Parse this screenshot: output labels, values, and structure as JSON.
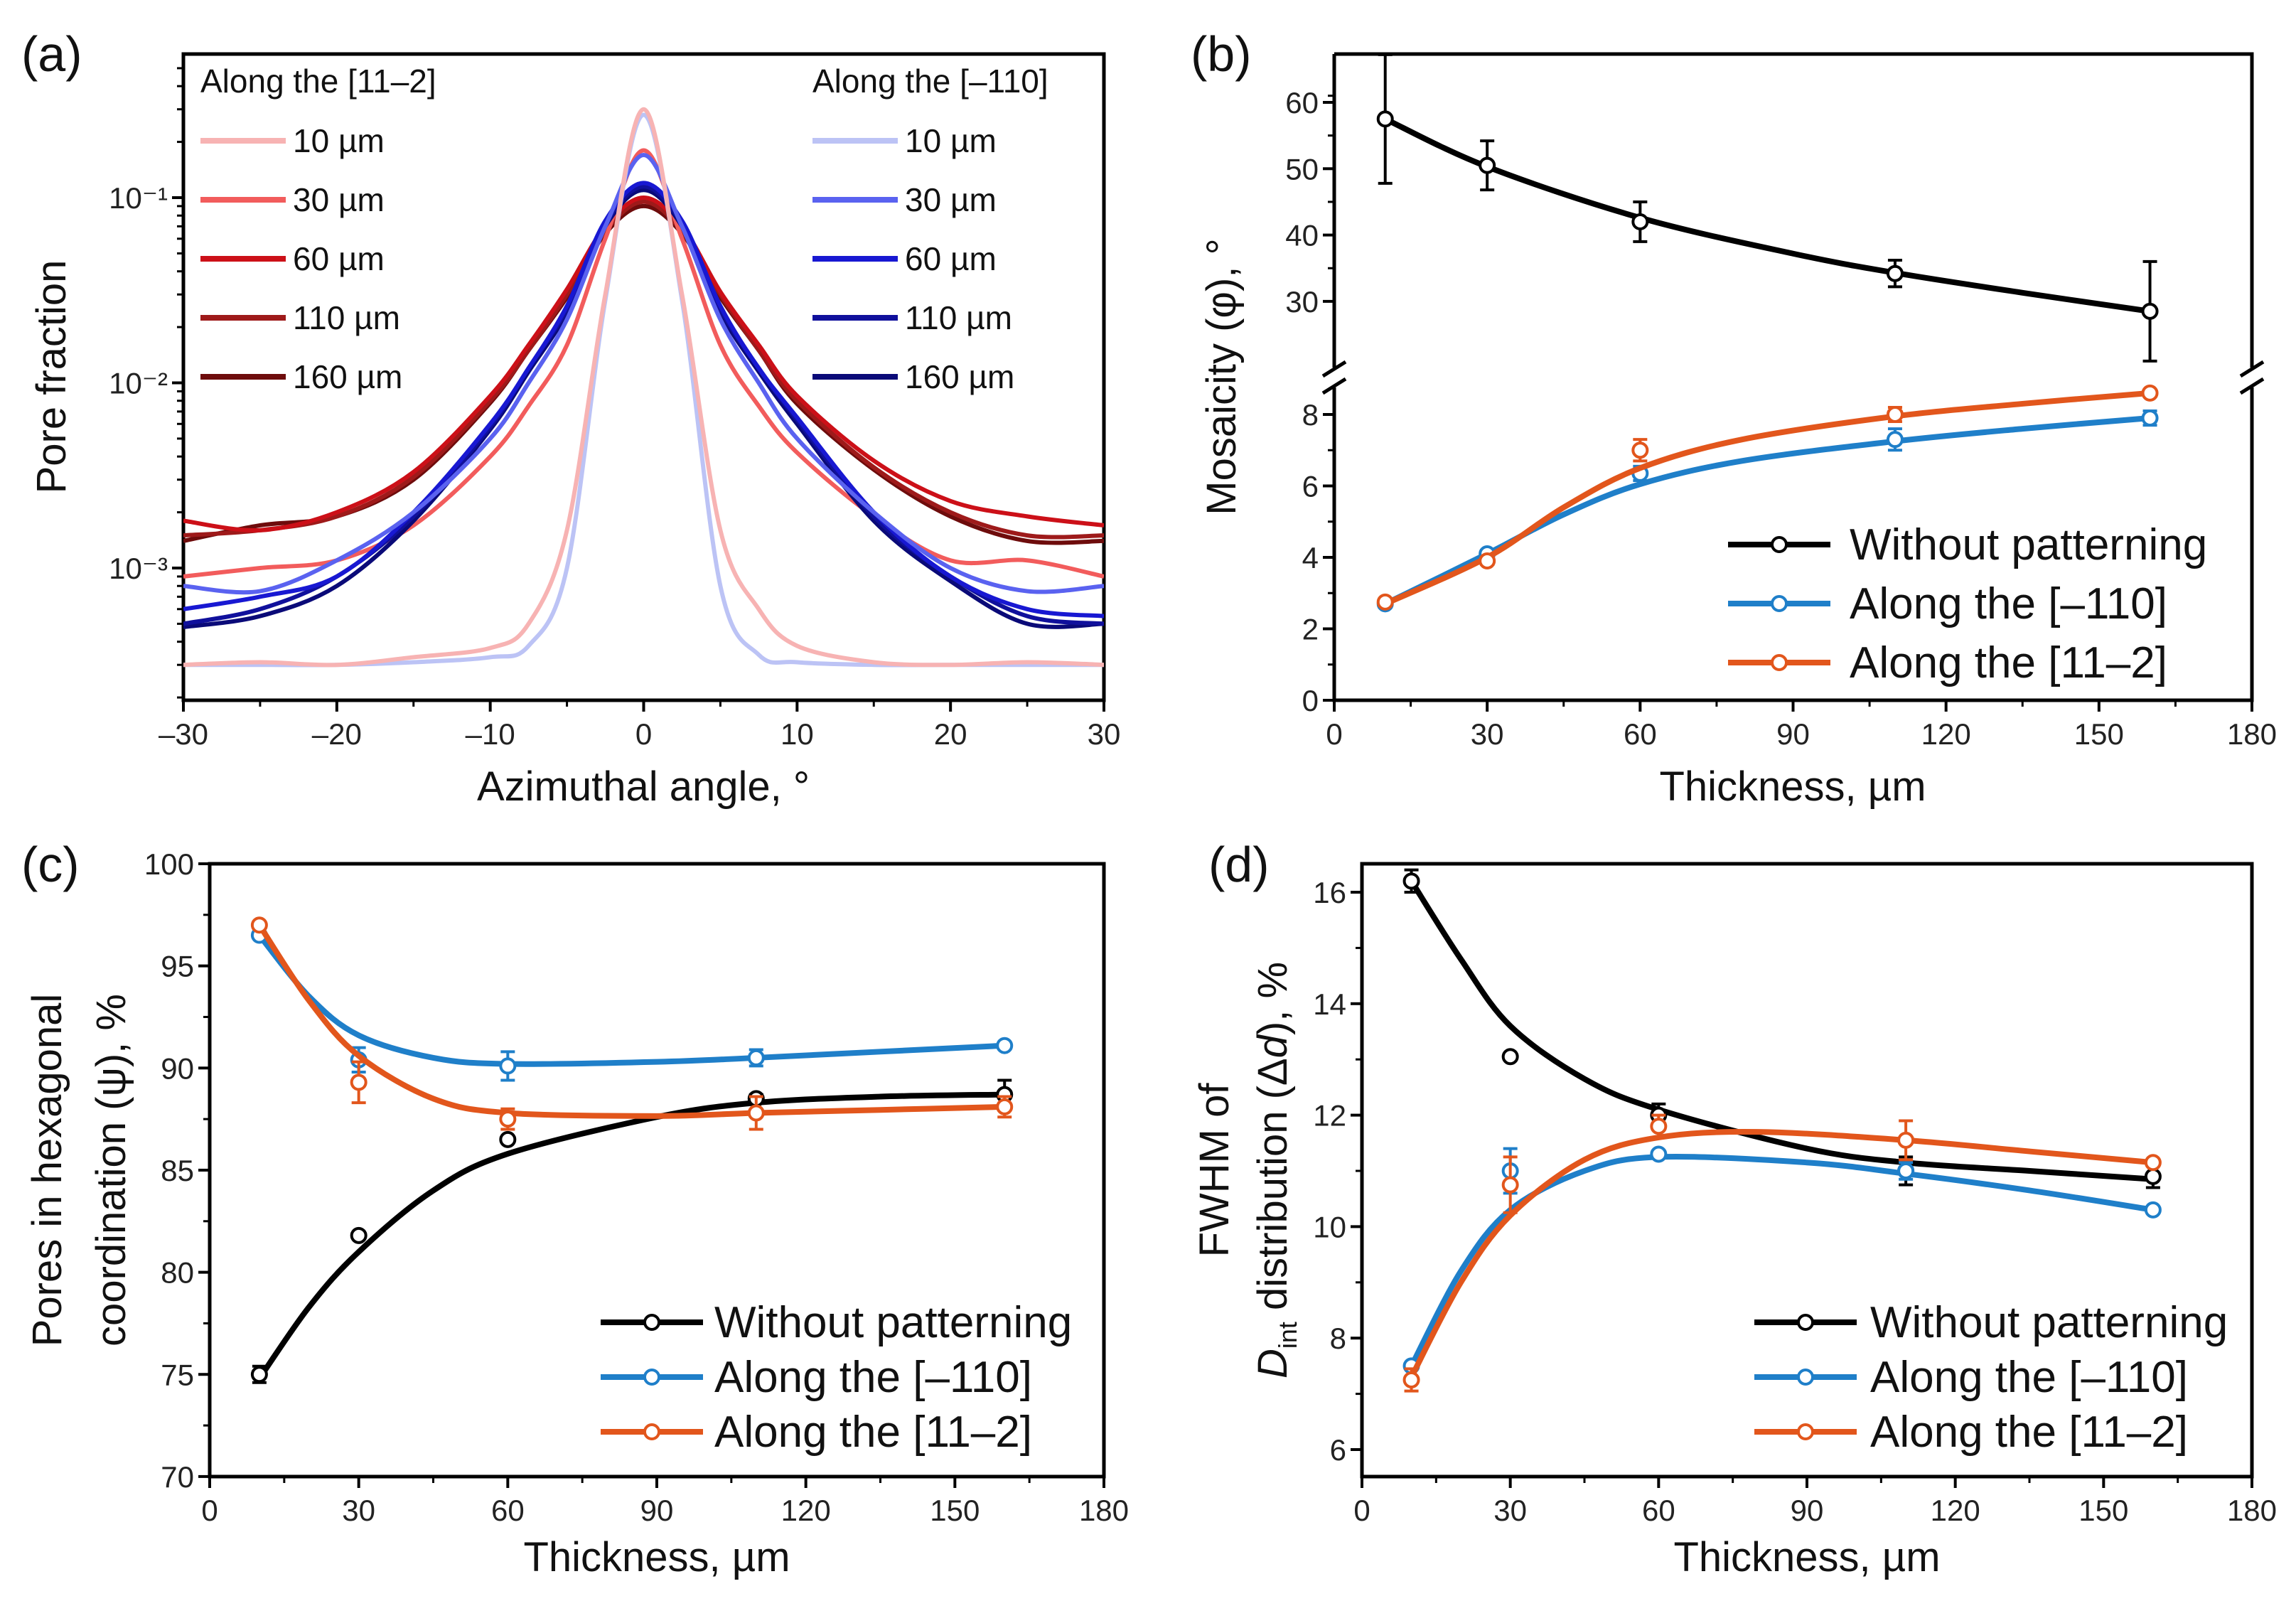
{
  "chart_data": [
    {
      "panel": "(a)",
      "type": "line",
      "xlabel": "Azimuthal angle, °",
      "ylabel": "Pore fraction",
      "xlim": [
        -30,
        30
      ],
      "ylim": [
        0.000195,
        0.6
      ],
      "yscale": "log",
      "xticks": [
        -30,
        -20,
        -10,
        0,
        10,
        20,
        30
      ],
      "xtick_labels": [
        "–30",
        "–20",
        "–10",
        "0",
        "10",
        "20",
        "30"
      ],
      "yticks": [
        0.1,
        0.01,
        0.001
      ],
      "ytick_labels": [
        "10⁻¹",
        "10⁻²",
        "10⁻³"
      ],
      "legend_groups": [
        {
          "title": "Along the [11–2]",
          "placement": "top-left"
        },
        {
          "title": "Along the [–110]",
          "placement": "top-right"
        }
      ],
      "x": [
        -30,
        -25,
        -20,
        -15,
        -10,
        -7.5,
        -5,
        -2.5,
        0,
        2.5,
        5,
        7.5,
        10,
        15,
        20,
        25,
        30
      ],
      "series": [
        {
          "group": 0,
          "name": "10 µm",
          "color": "#f7b3b3",
          "values": [
            0.0003,
            0.00031,
            0.0003,
            0.00033,
            0.00037,
            0.0005,
            0.0016,
            0.03,
            0.3,
            0.03,
            0.0016,
            0.0006,
            0.00038,
            0.00031,
            0.0003,
            0.00031,
            0.0003
          ]
        },
        {
          "group": 0,
          "name": "30 µm",
          "color": "#f25c5c",
          "values": [
            0.0009,
            0.001,
            0.0011,
            0.0017,
            0.004,
            0.0075,
            0.016,
            0.06,
            0.18,
            0.06,
            0.016,
            0.0075,
            0.0042,
            0.0019,
            0.0011,
            0.0011,
            0.0009
          ]
        },
        {
          "group": 0,
          "name": "60 µm",
          "color": "#cc1018",
          "values": [
            0.0018,
            0.0016,
            0.002,
            0.0033,
            0.0085,
            0.016,
            0.032,
            0.07,
            0.1,
            0.07,
            0.031,
            0.016,
            0.0085,
            0.0038,
            0.0023,
            0.0019,
            0.0017
          ]
        },
        {
          "group": 0,
          "name": "110 µm",
          "color": "#9e1a1a",
          "values": [
            0.0015,
            0.0016,
            0.0019,
            0.0031,
            0.008,
            0.015,
            0.03,
            0.066,
            0.095,
            0.066,
            0.03,
            0.015,
            0.008,
            0.0035,
            0.002,
            0.0015,
            0.0015
          ]
        },
        {
          "group": 0,
          "name": "160 µm",
          "color": "#6e0c0c",
          "values": [
            0.0014,
            0.0017,
            0.0019,
            0.003,
            0.0078,
            0.015,
            0.029,
            0.064,
            0.09,
            0.064,
            0.029,
            0.015,
            0.0077,
            0.0034,
            0.0019,
            0.0014,
            0.0014
          ]
        },
        {
          "group": 1,
          "name": "10 µm",
          "color": "#bcc3f5",
          "values": [
            0.0003,
            0.0003,
            0.0003,
            0.00031,
            0.00033,
            0.00038,
            0.001,
            0.028,
            0.28,
            0.028,
            0.0008,
            0.00034,
            0.00031,
            0.0003,
            0.0003,
            0.0003,
            0.0003
          ]
        },
        {
          "group": 1,
          "name": "30 µm",
          "color": "#5a62f0",
          "values": [
            0.0008,
            0.00075,
            0.0011,
            0.002,
            0.005,
            0.01,
            0.022,
            0.07,
            0.17,
            0.07,
            0.022,
            0.01,
            0.005,
            0.002,
            0.001,
            0.00075,
            0.0008
          ]
        },
        {
          "group": 1,
          "name": "60 µm",
          "color": "#1818d2",
          "values": [
            0.0006,
            0.0007,
            0.0009,
            0.002,
            0.006,
            0.012,
            0.026,
            0.075,
            0.12,
            0.075,
            0.026,
            0.012,
            0.0065,
            0.002,
            0.0009,
            0.0006,
            0.00055
          ]
        },
        {
          "group": 1,
          "name": "110 µm",
          "color": "#10109c",
          "values": [
            0.0005,
            0.0006,
            0.0009,
            0.0019,
            0.0058,
            0.012,
            0.025,
            0.072,
            0.115,
            0.072,
            0.025,
            0.012,
            0.0063,
            0.0019,
            0.0009,
            0.00055,
            0.0005
          ]
        },
        {
          "group": 1,
          "name": "160 µm",
          "color": "#0a0a78",
          "values": [
            0.00048,
            0.00055,
            0.0008,
            0.0018,
            0.0056,
            0.0115,
            0.024,
            0.07,
            0.11,
            0.07,
            0.024,
            0.0115,
            0.006,
            0.0018,
            0.00085,
            0.0005,
            0.0005
          ]
        }
      ]
    },
    {
      "panel": "(b)",
      "type": "line",
      "xlabel": "Thickness, µm",
      "ylabel": "Mosaicity (φ), °",
      "xlim": [
        0,
        180
      ],
      "ylim_lower": [
        0,
        9
      ],
      "ylim_upper": [
        20,
        67.3
      ],
      "axis_break": true,
      "xticks": [
        0,
        30,
        60,
        90,
        120,
        150,
        180
      ],
      "yticks": [
        0,
        2,
        4,
        6,
        8,
        30,
        40,
        50,
        60
      ],
      "legend_placement": "bottom-right",
      "x": [
        10,
        30,
        60,
        110,
        160
      ],
      "series": [
        {
          "name": "Without patterning",
          "color": "#000000",
          "values": [
            57.5,
            50.5,
            42,
            34.2,
            28.5
          ],
          "errors": [
            9.7,
            3.7,
            3,
            2,
            7.5
          ],
          "fit_x": [
            10,
            30,
            60,
            90,
            110,
            135,
            160
          ],
          "fit": [
            57.5,
            50.3,
            42.6,
            37.2,
            34.3,
            31.3,
            28.5
          ]
        },
        {
          "name": "Along the [–110]",
          "color": "#1f7fc9",
          "values": [
            2.7,
            4.1,
            6.35,
            7.3,
            7.9
          ],
          "errors": [
            0.1,
            0.1,
            0.2,
            0.3,
            0.2
          ],
          "fit_x": [
            10,
            30,
            45,
            60,
            80,
            110,
            135,
            160
          ],
          "fit": [
            2.7,
            4.1,
            5.2,
            6.05,
            6.7,
            7.25,
            7.6,
            7.9
          ]
        },
        {
          "name": "Along the [11–2]",
          "color": "#e2561c",
          "values": [
            2.75,
            3.9,
            7.0,
            8.0,
            8.6
          ],
          "errors": [
            0.1,
            0.1,
            0.3,
            0.2,
            0.1
          ],
          "fit_x": [
            10,
            30,
            45,
            60,
            80,
            110,
            135,
            160
          ],
          "fit": [
            2.7,
            4.0,
            5.4,
            6.5,
            7.3,
            7.95,
            8.3,
            8.6
          ]
        }
      ]
    },
    {
      "panel": "(c)",
      "type": "line",
      "xlabel": "Thickness, µm",
      "ylabel": [
        "Pores in hexagonal",
        "coordination (ψ), %"
      ],
      "xlim": [
        0,
        180
      ],
      "ylim": [
        70,
        100
      ],
      "xticks": [
        0,
        30,
        60,
        90,
        120,
        150,
        180
      ],
      "yticks": [
        70,
        75,
        80,
        85,
        90,
        95,
        100
      ],
      "legend_placement": "bottom-right",
      "x": [
        10,
        30,
        60,
        110,
        160
      ],
      "series": [
        {
          "name": "Without patterning",
          "color": "#000000",
          "values": [
            75,
            81.8,
            86.5,
            88.5,
            88.7
          ],
          "errors": [
            0.4,
            0,
            0,
            0.2,
            0.7
          ],
          "fit_x": [
            10,
            20,
            30,
            45,
            60,
            90,
            110,
            135,
            160
          ],
          "fit": [
            74.8,
            78.3,
            81.0,
            84.0,
            85.8,
            87.6,
            88.3,
            88.6,
            88.7
          ]
        },
        {
          "name": "Along the [–110]",
          "color": "#1f7fc9",
          "values": [
            96.5,
            90.4,
            90.1,
            90.5,
            91.1
          ],
          "errors": [
            0,
            0.6,
            0.7,
            0.4,
            0
          ],
          "fit_x": [
            10,
            20,
            30,
            45,
            60,
            90,
            110,
            135,
            160
          ],
          "fit": [
            96.5,
            93.5,
            91.6,
            90.5,
            90.2,
            90.3,
            90.5,
            90.8,
            91.1
          ]
        },
        {
          "name": "Along the [11–2]",
          "color": "#e2561c",
          "values": [
            97,
            89.3,
            87.5,
            87.8,
            88.1
          ],
          "errors": [
            0,
            1.0,
            0.5,
            0.8,
            0.5
          ],
          "fit_x": [
            10,
            20,
            30,
            45,
            60,
            90,
            110,
            135,
            160
          ],
          "fit": [
            97,
            93.3,
            90.6,
            88.5,
            87.8,
            87.65,
            87.8,
            87.95,
            88.1
          ]
        }
      ]
    },
    {
      "panel": "(d)",
      "type": "line",
      "xlabel": "Thickness, µm",
      "ylabel": {
        "line1": "FWHM of",
        "d": "D",
        "sub": "int",
        "mid": " distribution (Δ",
        "dd": "d",
        "end": "), %"
      },
      "xlim": [
        0,
        180
      ],
      "ylim": [
        5.5,
        16.5
      ],
      "xticks": [
        0,
        30,
        60,
        90,
        120,
        150,
        180
      ],
      "yticks": [
        6,
        8,
        10,
        12,
        14,
        16
      ],
      "legend_placement": "bottom-right",
      "x": [
        10,
        30,
        60,
        110,
        160
      ],
      "series": [
        {
          "name": "Without patterning",
          "color": "#000000",
          "values": [
            16.2,
            13.05,
            12.0,
            11.0,
            10.9
          ],
          "errors": [
            0.2,
            0,
            0.2,
            0.25,
            0.2
          ],
          "fit_x": [
            10,
            20,
            30,
            45,
            60,
            90,
            110,
            135,
            160
          ],
          "fit": [
            16.2,
            14.8,
            13.6,
            12.65,
            12.1,
            11.4,
            11.15,
            11.0,
            10.85
          ]
        },
        {
          "name": "Along the [–110]",
          "color": "#1f7fc9",
          "values": [
            7.5,
            11.0,
            11.3,
            11.0,
            10.3
          ],
          "errors": [
            0,
            0.4,
            0,
            0.15,
            0
          ],
          "fit_x": [
            10,
            20,
            30,
            45,
            60,
            90,
            110,
            135,
            160
          ],
          "fit": [
            7.5,
            9.2,
            10.3,
            11.0,
            11.25,
            11.15,
            10.95,
            10.65,
            10.3
          ]
        },
        {
          "name": "Along the [11–2]",
          "color": "#e2561c",
          "values": [
            7.25,
            10.75,
            11.8,
            11.55,
            11.15
          ],
          "errors": [
            0.2,
            0.5,
            0.2,
            0.35,
            0
          ],
          "fit_x": [
            10,
            20,
            30,
            45,
            60,
            80,
            110,
            135,
            160
          ],
          "fit": [
            7.3,
            9.0,
            10.2,
            11.2,
            11.6,
            11.7,
            11.55,
            11.35,
            11.15
          ]
        }
      ]
    }
  ]
}
